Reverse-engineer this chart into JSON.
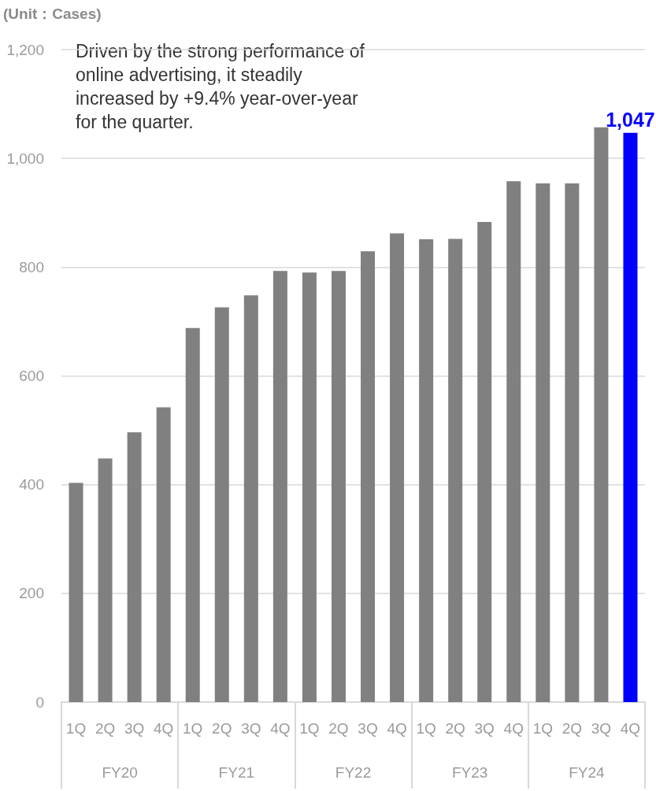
{
  "chart_data": {
    "type": "bar",
    "ylabel": "(Unit：Cases)",
    "annotations": [
      "Driven by the strong performance of\nonline advertising, it steadily\nincreased by +9.4% year-over-year\nfor the quarter.",
      "FY20",
      "FY21",
      "FY22",
      "FY23",
      "FY24"
    ],
    "categories": [
      "1Q",
      "2Q",
      "3Q",
      "4Q",
      "1Q",
      "2Q",
      "3Q",
      "4Q",
      "1Q",
      "2Q",
      "3Q",
      "4Q",
      "1Q",
      "2Q",
      "3Q",
      "4Q",
      "1Q",
      "2Q",
      "3Q",
      "4Q"
    ],
    "values": [
      403,
      448,
      496,
      542,
      688,
      726,
      748,
      793,
      790,
      793,
      829,
      862,
      851,
      852,
      883,
      958,
      954,
      954,
      1057,
      1047
    ],
    "colors": [
      "#808080",
      "#808080",
      "#808080",
      "#808080",
      "#808080",
      "#808080",
      "#808080",
      "#808080",
      "#808080",
      "#808080",
      "#808080",
      "#808080",
      "#808080",
      "#808080",
      "#808080",
      "#808080",
      "#808080",
      "#808080",
      "#808080",
      "#0000ff"
    ],
    "value_labels": [
      null,
      null,
      null,
      null,
      null,
      null,
      null,
      null,
      null,
      null,
      null,
      null,
      null,
      null,
      null,
      null,
      null,
      null,
      null,
      "1,047"
    ],
    "ylim": [
      0,
      1200
    ],
    "yticks": [
      0,
      200,
      400,
      600,
      800,
      {
        "value": 1000,
        "label": "1,000"
      },
      {
        "value": 1200,
        "label": "1,200"
      }
    ],
    "grid": "y"
  }
}
